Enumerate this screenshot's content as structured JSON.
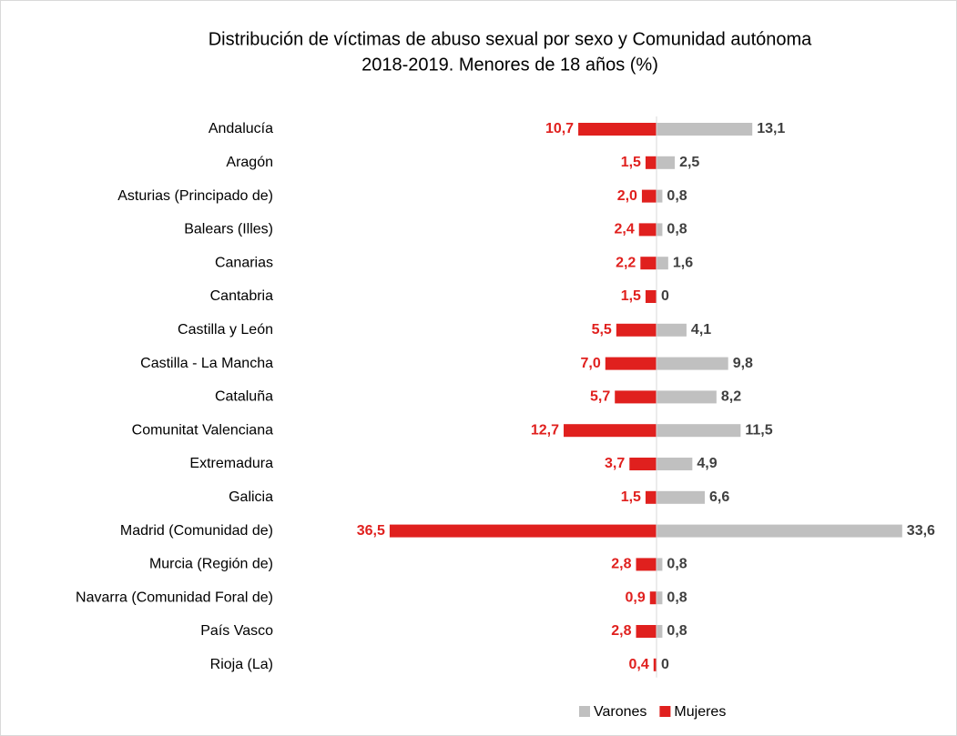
{
  "chart_data": {
    "type": "butterfly",
    "title": "Distribución de víctimas de abuso sexual por sexo y Comunidad autónoma",
    "subtitle": "2018-2019. Menores de 18 años (%)",
    "categories": [
      "Andalucía",
      "Aragón",
      "Asturias (Principado de)",
      "Balears (Illes)",
      "Canarias",
      "Cantabria",
      "Castilla y León",
      "Castilla - La Mancha",
      "Cataluña",
      "Comunitat Valenciana",
      "Extremadura",
      "Galicia",
      "Madrid (Comunidad de)",
      "Murcia (Región de)",
      "Navarra (Comunidad Foral de)",
      "País Vasco",
      "Rioja (La)"
    ],
    "series": [
      {
        "name": "Varones",
        "color": "#c0c0c0",
        "values": [
          13.1,
          2.5,
          0.8,
          0.8,
          1.6,
          0,
          4.1,
          9.8,
          8.2,
          11.5,
          4.9,
          6.6,
          33.6,
          0.8,
          0.8,
          0.8,
          0
        ],
        "value_labels": [
          "13,1",
          "2,5",
          "0,8",
          "0,8",
          "1,6",
          "0",
          "4,1",
          "9,8",
          "8,2",
          "11,5",
          "4,9",
          "6,6",
          "33,6",
          "0,8",
          "0,8",
          "0,8",
          "0"
        ]
      },
      {
        "name": "Mujeres",
        "color": "#e0201e",
        "values": [
          10.7,
          1.5,
          2.0,
          2.4,
          2.2,
          1.5,
          5.5,
          7.0,
          5.7,
          12.7,
          3.7,
          1.5,
          36.5,
          2.8,
          0.9,
          2.8,
          0.4
        ],
        "value_labels": [
          "10,7",
          "1,5",
          "2,0",
          "2,4",
          "2,2",
          "1,5",
          "5,5",
          "7,0",
          "5,7",
          "12,7",
          "3,7",
          "1,5",
          "36,5",
          "2,8",
          "0,9",
          "2,8",
          "0,4"
        ]
      }
    ]
  }
}
